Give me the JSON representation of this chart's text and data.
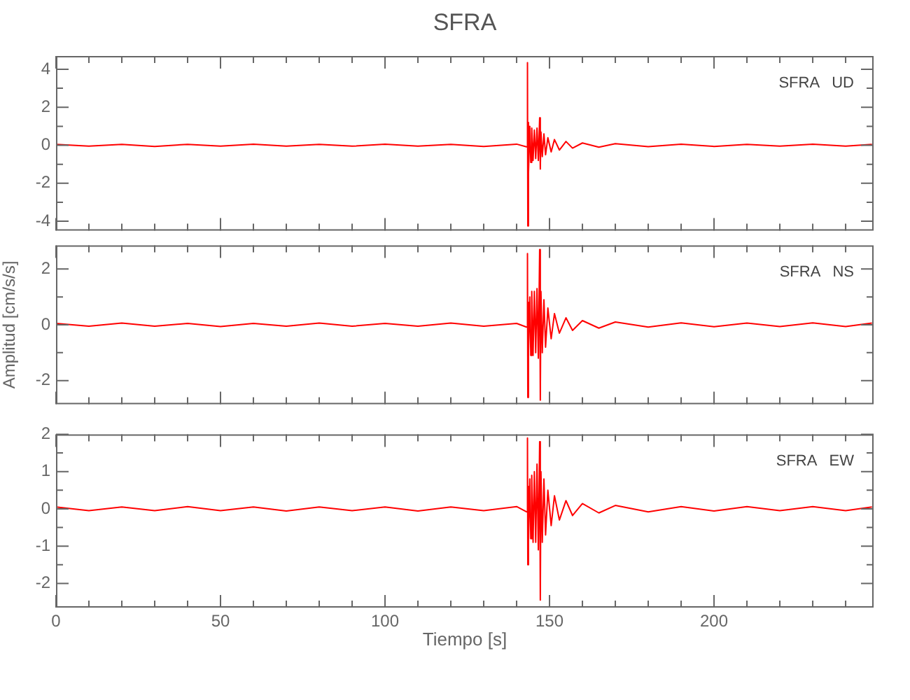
{
  "chart_data": [
    {
      "type": "line",
      "title": "SFRA",
      "annotations": [
        "SFRA   UD"
      ],
      "tick_labels": "y",
      "x": [
        0,
        10,
        20,
        30,
        40,
        50,
        60,
        70,
        80,
        90,
        100,
        110,
        120,
        130,
        140,
        143,
        143.3,
        143.4,
        143.5,
        143.7,
        144,
        144.3,
        144.6,
        145,
        145.4,
        145.8,
        146.2,
        146.6,
        147,
        147.2,
        147.4,
        147.8,
        148.3,
        148.8,
        149.5,
        150.5,
        151.5,
        153,
        155,
        157,
        160,
        165,
        170,
        180,
        190,
        200,
        210,
        220,
        230,
        240,
        248
      ],
      "series": [
        {
          "color": "#ff0000",
          "values": [
            0.05,
            -0.05,
            0.05,
            -0.06,
            0.05,
            -0.05,
            0.06,
            -0.05,
            0.05,
            -0.05,
            0.06,
            -0.05,
            0.05,
            -0.06,
            0.06,
            -0.08,
            4.35,
            -4.25,
            1.2,
            -1.5,
            1.0,
            -0.9,
            0.9,
            -0.8,
            0.8,
            -0.7,
            0.9,
            -0.8,
            1.45,
            -1.25,
            0.7,
            -0.6,
            0.6,
            -0.5,
            0.4,
            -0.35,
            0.3,
            -0.25,
            0.2,
            -0.15,
            0.12,
            -0.1,
            0.08,
            -0.07,
            0.06,
            -0.06,
            0.05,
            -0.05,
            0.06,
            -0.05,
            0.05
          ]
        }
      ],
      "xlim": [
        0,
        248.5
      ],
      "xticks": [
        0,
        {
          "value": 10,
          "label": null
        },
        {
          "value": 20,
          "label": null
        },
        {
          "value": 30,
          "label": null
        },
        {
          "value": 40,
          "label": null
        },
        50,
        {
          "value": 60,
          "label": null
        },
        {
          "value": 70,
          "label": null
        },
        {
          "value": 80,
          "label": null
        },
        {
          "value": 90,
          "label": null
        },
        100,
        {
          "value": 110,
          "label": null
        },
        {
          "value": 120,
          "label": null
        },
        {
          "value": 130,
          "label": null
        },
        {
          "value": 140,
          "label": null
        },
        150,
        {
          "value": 160,
          "label": null
        },
        {
          "value": 170,
          "label": null
        },
        {
          "value": 180,
          "label": null
        },
        {
          "value": 190,
          "label": null
        },
        200,
        {
          "value": 210,
          "label": null
        },
        {
          "value": 220,
          "label": null
        },
        {
          "value": 230,
          "label": null
        },
        {
          "value": 240,
          "label": null
        }
      ],
      "ylim": [
        -4.5,
        4.7
      ],
      "yticks": [
        -4,
        {
          "value": -3,
          "label": null
        },
        -2,
        {
          "value": -1,
          "label": null
        },
        0,
        {
          "value": 1,
          "label": null
        },
        2,
        {
          "value": 3,
          "label": null
        },
        4
      ]
    },
    {
      "type": "line",
      "ylabel": "Amplitud [cm/s/s]",
      "annotations": [
        "SFRA   NS"
      ],
      "tick_labels": "y",
      "x": [
        0,
        10,
        20,
        30,
        40,
        50,
        60,
        70,
        80,
        90,
        100,
        110,
        120,
        130,
        140,
        143,
        143.3,
        143.4,
        143.5,
        143.7,
        144,
        144.3,
        144.6,
        145,
        145.4,
        145.8,
        146.2,
        146.6,
        147,
        147.2,
        147.4,
        147.8,
        148.3,
        148.8,
        149.5,
        150.5,
        151.5,
        153,
        155,
        157,
        160,
        165,
        170,
        180,
        190,
        200,
        210,
        220,
        230,
        240,
        248
      ],
      "series": [
        {
          "color": "#ff0000",
          "values": [
            0.05,
            -0.05,
            0.06,
            -0.05,
            0.05,
            -0.06,
            0.05,
            -0.05,
            0.06,
            -0.05,
            0.05,
            -0.05,
            0.06,
            -0.05,
            0.05,
            -0.08,
            2.55,
            -2.6,
            0.8,
            -1.0,
            1.0,
            -1.1,
            1.2,
            -1.1,
            1.2,
            -1.0,
            1.3,
            -1.2,
            2.7,
            -2.7,
            1.2,
            -1.0,
            0.9,
            -0.8,
            0.6,
            -0.5,
            0.4,
            -0.3,
            0.25,
            -0.2,
            0.15,
            -0.12,
            0.1,
            -0.08,
            0.07,
            -0.07,
            0.06,
            -0.06,
            0.07,
            -0.06,
            0.06
          ]
        }
      ],
      "xlim": [
        0,
        248.5
      ],
      "xticks": [
        0,
        {
          "value": 10,
          "label": null
        },
        {
          "value": 20,
          "label": null
        },
        {
          "value": 30,
          "label": null
        },
        {
          "value": 40,
          "label": null
        },
        50,
        {
          "value": 60,
          "label": null
        },
        {
          "value": 70,
          "label": null
        },
        {
          "value": 80,
          "label": null
        },
        {
          "value": 90,
          "label": null
        },
        100,
        {
          "value": 110,
          "label": null
        },
        {
          "value": 120,
          "label": null
        },
        {
          "value": 130,
          "label": null
        },
        {
          "value": 140,
          "label": null
        },
        150,
        {
          "value": 160,
          "label": null
        },
        {
          "value": 170,
          "label": null
        },
        {
          "value": 180,
          "label": null
        },
        {
          "value": 190,
          "label": null
        },
        200,
        {
          "value": 210,
          "label": null
        },
        {
          "value": 220,
          "label": null
        },
        {
          "value": 230,
          "label": null
        },
        {
          "value": 240,
          "label": null
        }
      ],
      "ylim": [
        -2.85,
        2.85
      ],
      "yticks": [
        -2,
        {
          "value": -1,
          "label": null
        },
        0,
        {
          "value": 1,
          "label": null
        },
        2
      ]
    },
    {
      "type": "line",
      "xlabel": "Tiempo [s]",
      "annotations": [
        "SFRA   EW"
      ],
      "x": [
        0,
        10,
        20,
        30,
        40,
        50,
        60,
        70,
        80,
        90,
        100,
        110,
        120,
        130,
        140,
        143,
        143.3,
        143.4,
        143.5,
        143.7,
        144,
        144.3,
        144.6,
        145,
        145.4,
        145.8,
        146.2,
        146.6,
        147,
        147.2,
        147.4,
        147.8,
        148.3,
        148.8,
        149.5,
        150.5,
        151.5,
        153,
        155,
        157,
        160,
        165,
        170,
        180,
        190,
        200,
        210,
        220,
        230,
        240,
        248
      ],
      "series": [
        {
          "color": "#ff0000",
          "values": [
            0.05,
            -0.05,
            0.05,
            -0.05,
            0.06,
            -0.05,
            0.05,
            -0.06,
            0.05,
            -0.05,
            0.05,
            -0.06,
            0.05,
            -0.05,
            0.06,
            -0.08,
            1.9,
            -1.5,
            0.6,
            -0.9,
            0.8,
            -0.8,
            0.9,
            -0.9,
            1.0,
            -0.9,
            1.2,
            -1.1,
            1.8,
            -2.45,
            1.0,
            -0.9,
            0.8,
            -0.7,
            0.5,
            -0.45,
            0.35,
            -0.3,
            0.22,
            -0.18,
            0.14,
            -0.11,
            0.09,
            -0.08,
            0.06,
            -0.06,
            0.06,
            -0.05,
            0.06,
            -0.05,
            0.05
          ]
        }
      ],
      "xlim": [
        0,
        248.5
      ],
      "xticks": [
        0,
        {
          "value": 10,
          "label": null
        },
        {
          "value": 20,
          "label": null
        },
        {
          "value": 30,
          "label": null
        },
        {
          "value": 40,
          "label": null
        },
        50,
        {
          "value": 60,
          "label": null
        },
        {
          "value": 70,
          "label": null
        },
        {
          "value": 80,
          "label": null
        },
        {
          "value": 90,
          "label": null
        },
        100,
        {
          "value": 110,
          "label": null
        },
        {
          "value": 120,
          "label": null
        },
        {
          "value": 130,
          "label": null
        },
        {
          "value": 140,
          "label": null
        },
        150,
        {
          "value": 160,
          "label": null
        },
        {
          "value": 170,
          "label": null
        },
        {
          "value": 180,
          "label": null
        },
        {
          "value": 190,
          "label": null
        },
        200,
        {
          "value": 210,
          "label": null
        },
        {
          "value": 220,
          "label": null
        },
        {
          "value": 230,
          "label": null
        },
        {
          "value": 240,
          "label": null
        }
      ],
      "ylim": [
        -2.65,
        2
      ],
      "yticks": [
        -2,
        {
          "value": -1.5,
          "label": null
        },
        -1,
        {
          "value": -0.5,
          "label": null
        },
        0,
        {
          "value": 0.5,
          "label": null
        },
        1,
        {
          "value": 1.5,
          "label": null
        },
        2
      ]
    }
  ]
}
